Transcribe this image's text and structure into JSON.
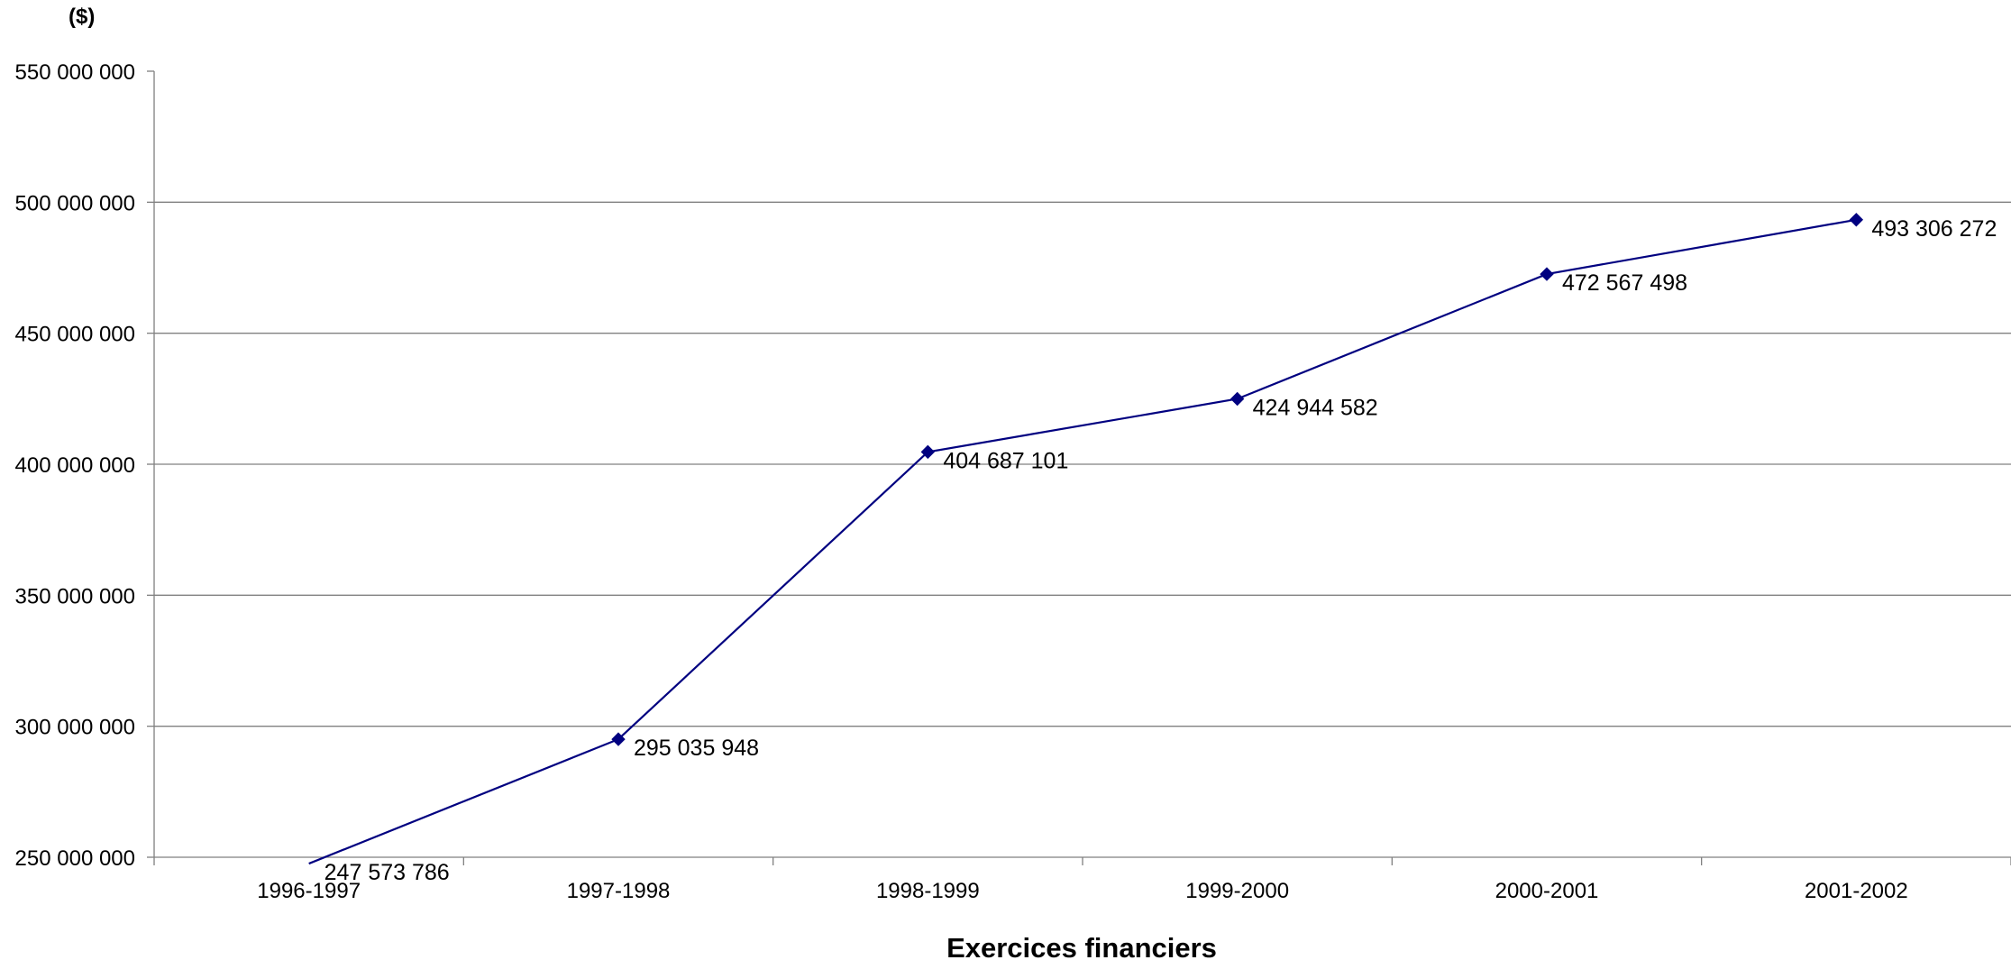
{
  "chart_data": {
    "type": "line",
    "unit_label": "($)",
    "xlabel": "Exercices financiers",
    "ylabel": "",
    "categories": [
      "1996-1997",
      "1997-1998",
      "1998-1999",
      "1999-2000",
      "2000-2001",
      "2001-2002"
    ],
    "series": [
      {
        "values": [
          247573786,
          295035948,
          404687101,
          424944582,
          472567498,
          493306272
        ],
        "labels": [
          "247 573 786",
          "295 035 948",
          "404 687 101",
          "424 944 582",
          "472 567 498",
          "493 306 272"
        ],
        "color": "#000080"
      }
    ],
    "ylim": [
      250000000,
      550000000
    ],
    "yticks": [
      250000000,
      300000000,
      350000000,
      400000000,
      450000000,
      500000000,
      550000000
    ],
    "ytick_labels": [
      "250 000 000",
      "300 000 000",
      "350 000 000",
      "400 000 000",
      "450 000 000",
      "500 000 000",
      "550 000 000"
    ],
    "grid": true,
    "legend": "none",
    "marker": "diamond"
  }
}
